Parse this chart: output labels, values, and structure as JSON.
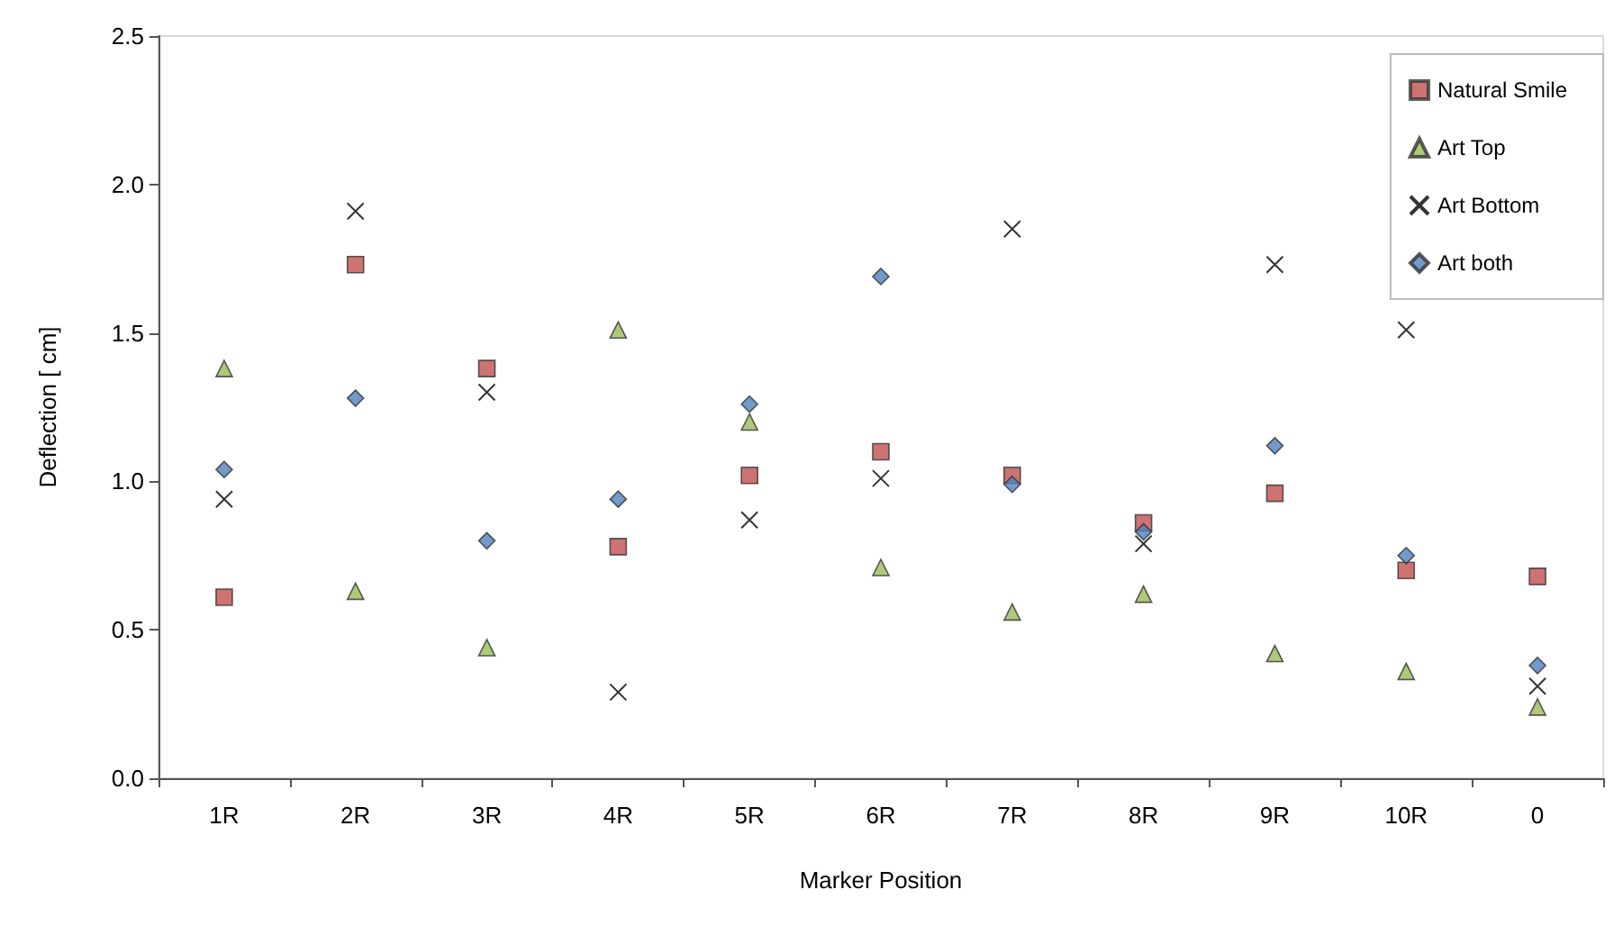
{
  "chart_data": {
    "type": "scatter",
    "xlabel": "Marker Position",
    "ylabel": "Deflection [ cm]",
    "categories": [
      "1R",
      "2R",
      "3R",
      "4R",
      "5R",
      "6R",
      "7R",
      "8R",
      "9R",
      "10R",
      "0"
    ],
    "ylim": [
      0,
      2.5
    ],
    "yticks": [
      {
        "value": 0,
        "label": "0.0"
      },
      0.5,
      {
        "value": 1,
        "label": "1.0"
      },
      1.5,
      {
        "value": 2,
        "label": "2.0"
      },
      2.5
    ],
    "grid": false,
    "legend": "top right",
    "series": [
      {
        "name": "Natural Smile",
        "color": "#c0504d",
        "marker": "square",
        "values": [
          0.61,
          1.73,
          1.38,
          0.78,
          1.02,
          1.1,
          1.02,
          0.86,
          0.96,
          0.7,
          0.68
        ]
      },
      {
        "name": "Art Top",
        "color": "#9bbb59",
        "marker": "triangle",
        "values": [
          1.38,
          0.63,
          0.44,
          1.51,
          1.2,
          0.71,
          0.56,
          0.62,
          0.42,
          0.36,
          0.24
        ]
      },
      {
        "name": "Art Bottom",
        "color": "#000000",
        "marker": "cross",
        "values": [
          0.94,
          1.91,
          1.3,
          0.29,
          0.87,
          1.01,
          1.85,
          0.79,
          1.73,
          1.51,
          0.31
        ]
      },
      {
        "name": "Art both",
        "color": "#4f81bd",
        "marker": "diamond",
        "values": [
          1.04,
          1.28,
          0.8,
          0.94,
          1.26,
          1.69,
          0.99,
          0.83,
          1.12,
          0.75,
          0.38
        ]
      }
    ]
  }
}
